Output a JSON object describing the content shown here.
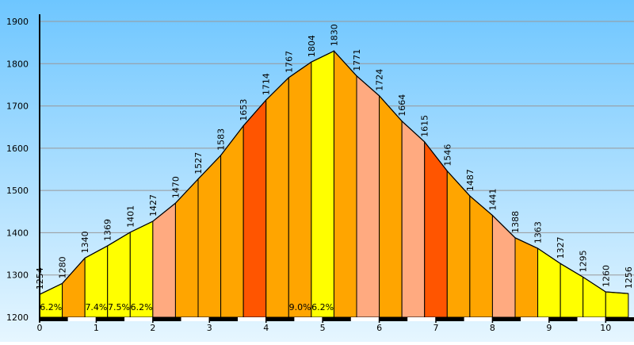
{
  "chart_data": {
    "type": "area",
    "title": "",
    "xlabel": "",
    "ylabel": "",
    "xlim": [
      0,
      10.5
    ],
    "ylim": [
      1200,
      1900
    ],
    "grid": true,
    "x_ticks": [
      0,
      1,
      2,
      3,
      4,
      5,
      6,
      7,
      8,
      9,
      10
    ],
    "y_ticks": [
      1200,
      1300,
      1400,
      1500,
      1600,
      1700,
      1800,
      1900
    ],
    "points": [
      {
        "x": 0.0,
        "y": 1254
      },
      {
        "x": 0.4,
        "y": 1280
      },
      {
        "x": 0.8,
        "y": 1340
      },
      {
        "x": 1.2,
        "y": 1369
      },
      {
        "x": 1.6,
        "y": 1401
      },
      {
        "x": 2.0,
        "y": 1427
      },
      {
        "x": 2.4,
        "y": 1470
      },
      {
        "x": 2.8,
        "y": 1527
      },
      {
        "x": 3.2,
        "y": 1583
      },
      {
        "x": 3.6,
        "y": 1653
      },
      {
        "x": 4.0,
        "y": 1714
      },
      {
        "x": 4.4,
        "y": 1767
      },
      {
        "x": 4.8,
        "y": 1804
      },
      {
        "x": 5.2,
        "y": 1830
      },
      {
        "x": 5.6,
        "y": 1771
      },
      {
        "x": 6.0,
        "y": 1724
      },
      {
        "x": 6.4,
        "y": 1664
      },
      {
        "x": 6.8,
        "y": 1615
      },
      {
        "x": 7.2,
        "y": 1546
      },
      {
        "x": 7.6,
        "y": 1487
      },
      {
        "x": 8.0,
        "y": 1441
      },
      {
        "x": 8.4,
        "y": 1388
      },
      {
        "x": 8.8,
        "y": 1363
      },
      {
        "x": 9.2,
        "y": 1327
      },
      {
        "x": 9.6,
        "y": 1295
      },
      {
        "x": 10.0,
        "y": 1260
      },
      {
        "x": 10.4,
        "y": 1256
      }
    ],
    "segment_colors": [
      "#ffff00",
      "#ffa500",
      "#ffff00",
      "#ffff00",
      "#ffff00",
      "#ffaa80",
      "#ffa500",
      "#ffa500",
      "#ffa500",
      "#ff5500",
      "#ffa500",
      "#ffa500",
      "#ffff00",
      "#ffa500",
      "#ffaa80",
      "#ffa500",
      "#ffaa80",
      "#ff5500",
      "#ffa500",
      "#ffa500",
      "#ffaa80",
      "#ffa500",
      "#ffff00",
      "#ffff00",
      "#ffff00",
      "#ffff00"
    ],
    "gradient_labels": [
      {
        "segment": 0,
        "text": "6.2%"
      },
      {
        "segment": 2,
        "text": "7.4%"
      },
      {
        "segment": 3,
        "text": "7.5%"
      },
      {
        "segment": 4,
        "text": "6.2%"
      },
      {
        "segment": 11,
        "text": "9.0%"
      },
      {
        "segment": 12,
        "text": "6.2%"
      }
    ],
    "colors": {
      "background_top": "#6ec6ff",
      "background_bottom": "#e6f6ff",
      "grid": "#999999",
      "outline": "#000000"
    }
  }
}
